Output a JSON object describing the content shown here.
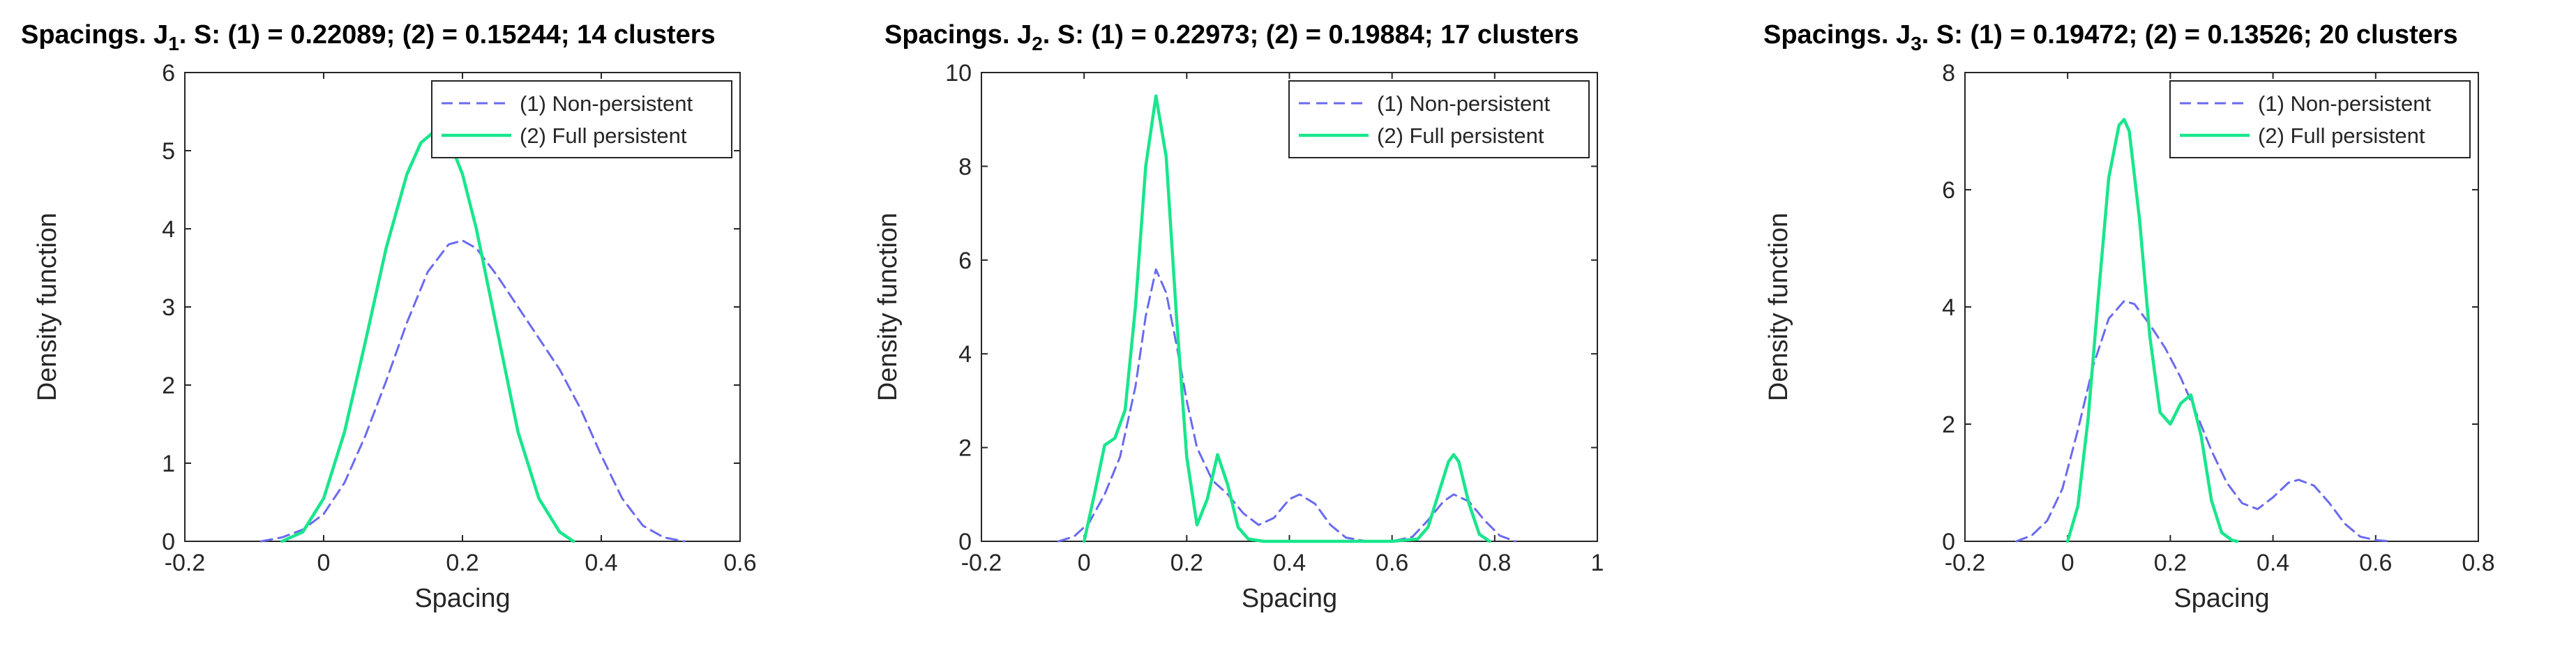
{
  "colors": {
    "non_persistent": "#6a6aef",
    "full_persistent": "#19e68c",
    "axis": "#262626"
  },
  "chart_data": [
    {
      "type": "line",
      "title": {
        "main": "Spacings. J",
        "sub": "1",
        "rest": ". S: (1) = 0.22089; (2) = 0.15244; 14 clusters"
      },
      "xlabel": "Spacing",
      "ylabel": "Density function",
      "xlim": [
        -0.2,
        0.6
      ],
      "ylim": [
        0,
        6
      ],
      "xticks": [
        -0.2,
        0,
        0.2,
        0.4,
        0.6
      ],
      "xtick_labels": [
        "-0.2",
        "0",
        "0.2",
        "0.4",
        "0.6"
      ],
      "yticks": [
        0,
        1,
        2,
        3,
        4,
        5,
        6
      ],
      "ytick_labels": [
        "0",
        "1",
        "2",
        "3",
        "4",
        "5",
        "6"
      ],
      "legend": {
        "position": "top-right",
        "entries": [
          "(1) Non-persistent",
          "(2) Full persistent"
        ]
      },
      "series": [
        {
          "name": "(1) Non-persistent",
          "style": "dashed",
          "x": [
            -0.09,
            -0.06,
            -0.03,
            0.0,
            0.03,
            0.06,
            0.09,
            0.12,
            0.15,
            0.18,
            0.2,
            0.22,
            0.25,
            0.28,
            0.31,
            0.34,
            0.37,
            0.4,
            0.43,
            0.46,
            0.49,
            0.52
          ],
          "y": [
            0.0,
            0.05,
            0.15,
            0.35,
            0.75,
            1.35,
            2.05,
            2.8,
            3.45,
            3.8,
            3.85,
            3.75,
            3.4,
            3.0,
            2.6,
            2.2,
            1.7,
            1.1,
            0.55,
            0.2,
            0.05,
            0.0
          ]
        },
        {
          "name": "(2) Full persistent",
          "style": "solid",
          "x": [
            -0.06,
            -0.03,
            0.0,
            0.03,
            0.06,
            0.09,
            0.12,
            0.14,
            0.16,
            0.18,
            0.2,
            0.22,
            0.25,
            0.28,
            0.31,
            0.34,
            0.36
          ],
          "y": [
            0.0,
            0.12,
            0.55,
            1.4,
            2.55,
            3.75,
            4.7,
            5.1,
            5.25,
            5.15,
            4.7,
            4.0,
            2.7,
            1.4,
            0.55,
            0.12,
            0.0
          ]
        }
      ]
    },
    {
      "type": "line",
      "title": {
        "main": "Spacings. J",
        "sub": "2",
        "rest": ". S: (1) = 0.22973; (2) = 0.19884; 17 clusters"
      },
      "xlabel": "Spacing",
      "ylabel": "Density function",
      "xlim": [
        -0.2,
        1.0
      ],
      "ylim": [
        0,
        10
      ],
      "xticks": [
        -0.2,
        0,
        0.2,
        0.4,
        0.6,
        0.8,
        1.0
      ],
      "xtick_labels": [
        "-0.2",
        "0",
        "0.2",
        "0.4",
        "0.6",
        "0.8",
        "1"
      ],
      "yticks": [
        0,
        2,
        4,
        6,
        8,
        10
      ],
      "ytick_labels": [
        "0",
        "2",
        "4",
        "6",
        "8",
        "10"
      ],
      "legend": {
        "position": "top-right",
        "entries": [
          "(1) Non-persistent",
          "(2) Full persistent"
        ]
      },
      "series": [
        {
          "name": "(1) Non-persistent",
          "style": "dashed",
          "x": [
            -0.05,
            -0.02,
            0.01,
            0.04,
            0.07,
            0.1,
            0.12,
            0.14,
            0.16,
            0.18,
            0.2,
            0.22,
            0.25,
            0.28,
            0.31,
            0.34,
            0.37,
            0.4,
            0.42,
            0.45,
            0.48,
            0.51,
            0.55,
            0.6,
            0.64,
            0.67,
            0.7,
            0.72,
            0.75,
            0.78,
            0.81,
            0.84
          ],
          "y": [
            0.0,
            0.1,
            0.4,
            1.0,
            1.8,
            3.3,
            4.8,
            5.8,
            5.3,
            4.2,
            3.0,
            2.0,
            1.3,
            1.0,
            0.6,
            0.35,
            0.5,
            0.9,
            1.0,
            0.8,
            0.35,
            0.08,
            0.0,
            0.0,
            0.1,
            0.45,
            0.85,
            1.0,
            0.85,
            0.45,
            0.12,
            0.0
          ]
        },
        {
          "name": "(2) Full persistent",
          "style": "solid",
          "x": [
            0.0,
            0.02,
            0.04,
            0.06,
            0.08,
            0.1,
            0.12,
            0.14,
            0.16,
            0.18,
            0.2,
            0.22,
            0.24,
            0.26,
            0.28,
            0.3,
            0.32,
            0.35,
            0.4,
            0.5,
            0.6,
            0.65,
            0.67,
            0.69,
            0.71,
            0.72,
            0.73,
            0.75,
            0.77,
            0.79
          ],
          "y": [
            0.0,
            1.0,
            2.05,
            2.2,
            2.8,
            5.0,
            8.0,
            9.5,
            8.2,
            4.8,
            1.8,
            0.35,
            0.9,
            1.85,
            1.2,
            0.3,
            0.05,
            0.0,
            0.0,
            0.0,
            0.0,
            0.05,
            0.3,
            1.0,
            1.7,
            1.85,
            1.7,
            0.8,
            0.15,
            0.0
          ]
        }
      ]
    },
    {
      "type": "line",
      "title": {
        "main": "Spacings. J",
        "sub": "3",
        "rest": ". S: (1) = 0.19472; (2) = 0.13526; 20 clusters"
      },
      "xlabel": "Spacing",
      "ylabel": "Density function",
      "xlim": [
        -0.2,
        0.8
      ],
      "ylim": [
        0,
        8
      ],
      "xticks": [
        -0.2,
        0,
        0.2,
        0.4,
        0.6,
        0.8
      ],
      "xtick_labels": [
        "-0.2",
        "0",
        "0.2",
        "0.4",
        "0.6",
        "0.8"
      ],
      "yticks": [
        0,
        2,
        4,
        6,
        8
      ],
      "ytick_labels": [
        "0",
        "2",
        "4",
        "6",
        "8"
      ],
      "legend": {
        "position": "top-right",
        "entries": [
          "(1) Non-persistent",
          "(2) Full persistent"
        ]
      },
      "series": [
        {
          "name": "(1) Non-persistent",
          "style": "dashed",
          "x": [
            -0.1,
            -0.07,
            -0.04,
            -0.01,
            0.02,
            0.05,
            0.08,
            0.11,
            0.13,
            0.16,
            0.19,
            0.22,
            0.25,
            0.28,
            0.31,
            0.34,
            0.37,
            0.4,
            0.43,
            0.45,
            0.48,
            0.51,
            0.54,
            0.57,
            0.6,
            0.63
          ],
          "y": [
            0.0,
            0.1,
            0.35,
            0.9,
            1.9,
            3.0,
            3.8,
            4.1,
            4.05,
            3.7,
            3.3,
            2.8,
            2.2,
            1.55,
            1.0,
            0.65,
            0.55,
            0.75,
            1.0,
            1.05,
            0.95,
            0.65,
            0.3,
            0.08,
            0.02,
            0.0
          ]
        },
        {
          "name": "(2) Full persistent",
          "style": "solid",
          "x": [
            0.0,
            0.02,
            0.04,
            0.06,
            0.08,
            0.1,
            0.11,
            0.12,
            0.14,
            0.16,
            0.18,
            0.2,
            0.22,
            0.24,
            0.26,
            0.28,
            0.3,
            0.32,
            0.33
          ],
          "y": [
            0.0,
            0.6,
            2.1,
            4.2,
            6.2,
            7.1,
            7.2,
            7.0,
            5.5,
            3.5,
            2.2,
            2.0,
            2.35,
            2.5,
            1.8,
            0.7,
            0.15,
            0.02,
            0.0
          ]
        }
      ]
    }
  ]
}
